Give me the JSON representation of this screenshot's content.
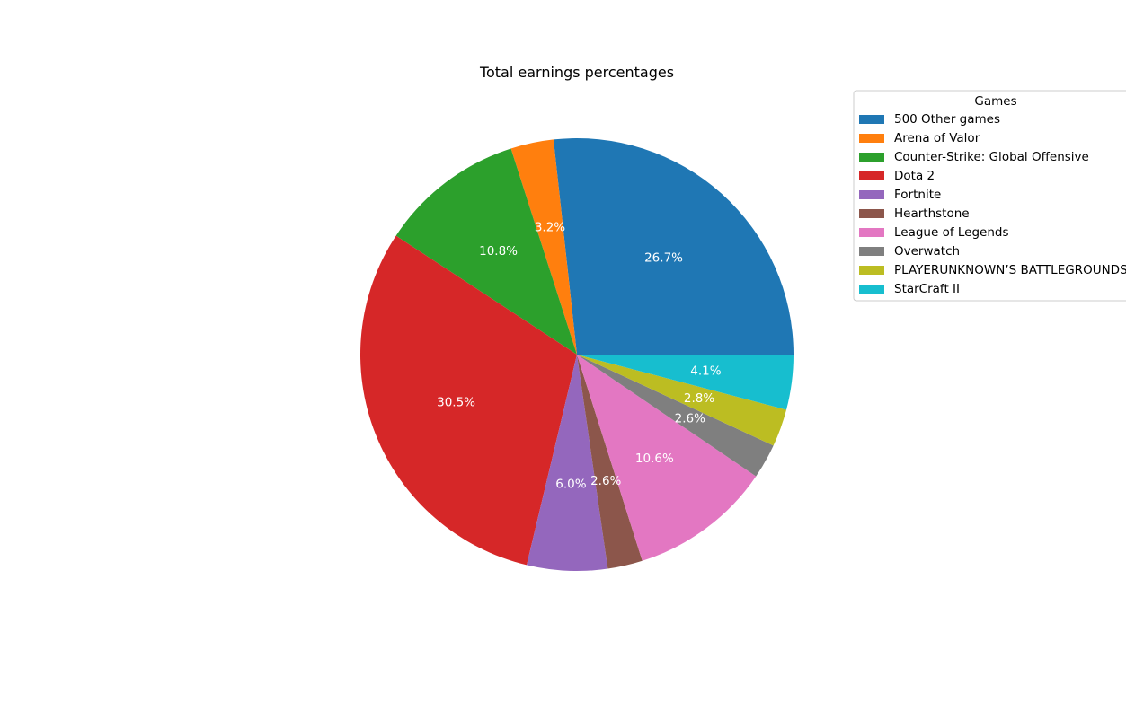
{
  "chart_data": {
    "type": "pie",
    "title": "Total earnings percentages",
    "legend": {
      "title": "Games",
      "placement": "upper-right, outside plot"
    },
    "start_angle_deg": 0,
    "direction": "counterclockwise",
    "label_format": "{pct:.1f}%",
    "slices": [
      {
        "label": "500 Other games",
        "value": 26.7,
        "color": "#1f77b4"
      },
      {
        "label": "Arena of Valor",
        "value": 3.2,
        "color": "#ff7f0e"
      },
      {
        "label": "Counter-Strike: Global Offensive",
        "value": 10.8,
        "color": "#2ca02c"
      },
      {
        "label": "Dota 2",
        "value": 30.5,
        "color": "#d62728"
      },
      {
        "label": "Fortnite",
        "value": 6.0,
        "color": "#9467bd"
      },
      {
        "label": "Hearthstone",
        "value": 2.6,
        "color": "#8c564b"
      },
      {
        "label": "League of Legends",
        "value": 10.6,
        "color": "#e377c2"
      },
      {
        "label": "Overwatch",
        "value": 2.6,
        "color": "#7f7f7f"
      },
      {
        "label": "PLAYERUNKNOWN’S BATTLEGROUNDS",
        "value": 2.8,
        "color": "#bcbd22"
      },
      {
        "label": "StarCraft II",
        "value": 4.1,
        "color": "#17becf"
      }
    ]
  }
}
